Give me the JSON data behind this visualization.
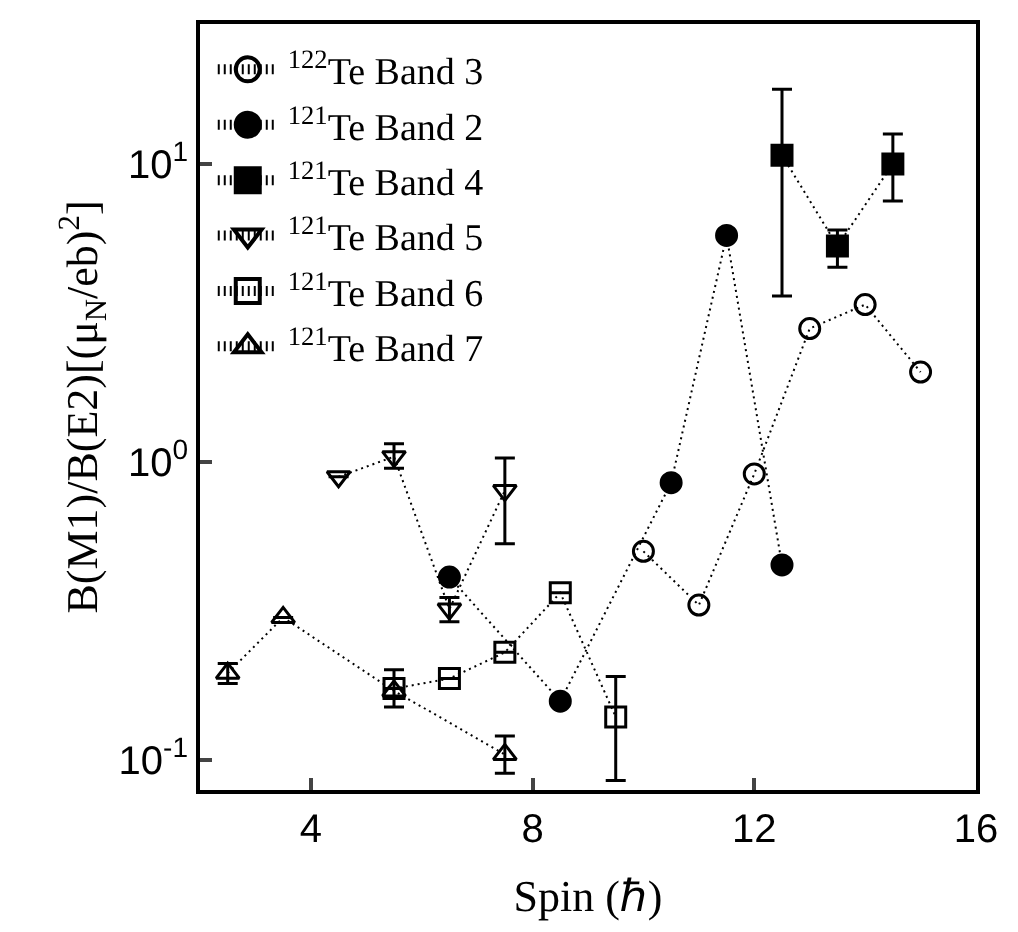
{
  "chart_data": {
    "type": "line",
    "xlabel": "Spin (ℏ)",
    "ylabel": "B(M1)/B(E2)[(μ$_{N}$/eb)$^{2}$]",
    "log": "y",
    "xlim": [
      2,
      16
    ],
    "ylim": [
      0.079,
      29.5
    ],
    "xticks": [
      4,
      8,
      12,
      16
    ],
    "yticks": [
      {
        "value": 0.1,
        "label": "10$^{-1}$"
      },
      {
        "value": 1,
        "label": "10$^{0}$"
      },
      {
        "value": 10,
        "label": "10$^{1}$"
      }
    ],
    "legend": "top left",
    "line_style": "dotted",
    "series": [
      {
        "name": "$^{122}$Te Band 3",
        "color": "#000000",
        "marker": "circle-open",
        "x": [
          10,
          11,
          12,
          13,
          14,
          15
        ],
        "values": [
          0.5,
          0.33,
          0.91,
          2.8,
          3.37,
          2.0
        ]
      },
      {
        "name": "$^{121}$Te Band 2",
        "color": "#000000",
        "marker": "circle",
        "x": [
          6.5,
          8.5,
          10.5,
          11.5,
          12.5
        ],
        "values": [
          0.41,
          0.157,
          0.85,
          5.75,
          0.45
        ]
      },
      {
        "name": "$^{121}$Te Band 4",
        "color": "#000000",
        "marker": "square",
        "x": [
          12.5,
          13.5,
          14.5
        ],
        "values": [
          10.7,
          5.3,
          10.0
        ],
        "errors": [
          [
            3.6,
            17.8
          ],
          [
            4.5,
            6.0
          ],
          [
            7.5,
            12.6
          ]
        ]
      },
      {
        "name": "$^{121}$Te Band 5",
        "color": "#000000",
        "marker": "triangle-down-open",
        "x": [
          4.5,
          5.5,
          6.5,
          7.5
        ],
        "values": [
          0.89,
          1.04,
          0.32,
          0.8
        ],
        "errors": [
          null,
          [
            0.95,
            1.15
          ],
          [
            0.29,
            0.35
          ],
          [
            0.53,
            1.03
          ]
        ]
      },
      {
        "name": "$^{121}$Te Band 6",
        "color": "#000000",
        "marker": "square-open",
        "x": [
          5.5,
          6.5,
          7.5,
          8.5,
          9.5
        ],
        "values": [
          0.173,
          0.187,
          0.229,
          0.363,
          0.139
        ],
        "errors": [
          null,
          null,
          null,
          null,
          [
            0.085,
            0.19
          ]
        ]
      },
      {
        "name": "$^{121}$Te Band 7",
        "color": "#000000",
        "marker": "triangle-up-open",
        "x": [
          2.5,
          3.5,
          5.5,
          7.5
        ],
        "values": [
          0.195,
          0.3,
          0.17,
          0.104
        ],
        "errors": [
          [
            0.18,
            0.21
          ],
          null,
          [
            0.15,
            0.2
          ],
          [
            0.09,
            0.12
          ]
        ]
      }
    ]
  }
}
